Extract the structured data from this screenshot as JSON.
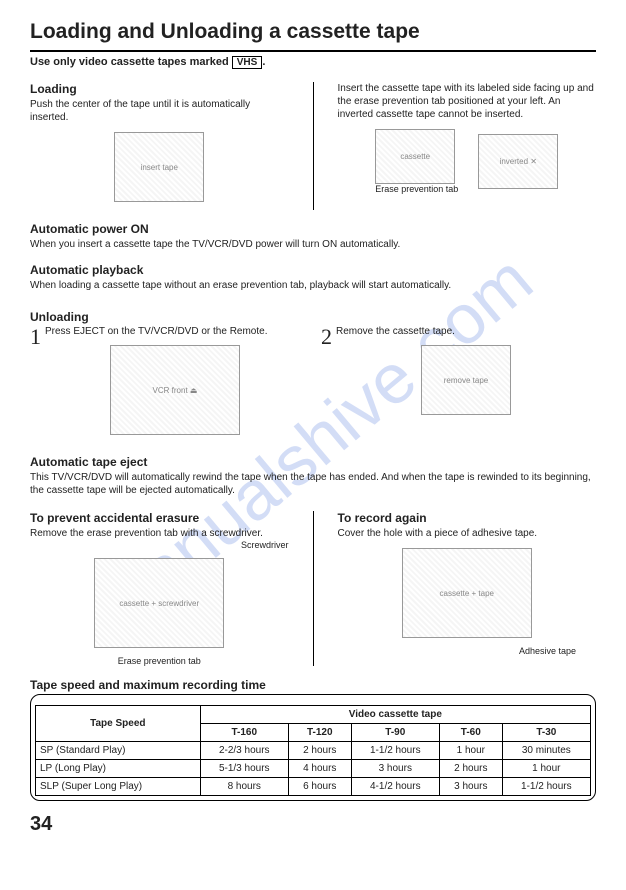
{
  "watermark": "manualshive.com",
  "title": "Loading and Unloading a cassette tape",
  "subtitle_pre": "Use only video cassette tapes marked ",
  "vhs": "VHS",
  "subtitle_post": ".",
  "loading": {
    "h": "Loading",
    "left": "Push the center of the tape until it is automatically inserted.",
    "right": "Insert the cassette tape with its labeled side facing up and the erase prevention tab positioned at your left. An inverted cassette tape cannot be inserted.",
    "fig1": "insert tape",
    "fig2": "cassette",
    "fig3": "inverted ✕",
    "cap": "Erase prevention tab"
  },
  "auto_on": {
    "h": "Automatic power ON",
    "t": "When you insert a cassette tape the TV/VCR/DVD power will turn ON automatically."
  },
  "auto_pb": {
    "h": "Automatic playback",
    "t": "When loading a cassette tape without an erase prevention tab, playback will start automatically."
  },
  "unloading": {
    "h": "Unloading",
    "s1n": "1",
    "s1": "Press EJECT on the TV/VCR/DVD or the Remote.",
    "s2n": "2",
    "s2": "Remove the cassette tape.",
    "fig1": "VCR front ⏏",
    "fig2": "remove tape"
  },
  "auto_ej": {
    "h": "Automatic tape eject",
    "t": "This TV/VCR/DVD will automatically rewind the tape when the tape has ended. And when the tape is rewinded to its beginning, the cassette tape will be ejected automatically."
  },
  "prevent": {
    "h": "To prevent accidental erasure",
    "t": "Remove the erase prevention tab with a screwdriver.",
    "cap1": "Screwdriver",
    "cap2": "Erase prevention tab",
    "fig": "cassette + screwdriver"
  },
  "record": {
    "h": "To record again",
    "t": "Cover the hole with a piece of adhesive tape.",
    "cap": "Adhesive tape",
    "fig": "cassette + tape"
  },
  "table": {
    "title": "Tape speed and maximum recording time",
    "h_speed": "Tape Speed",
    "h_cat": "Video cassette tape",
    "cols": [
      "T-160",
      "T-120",
      "T-90",
      "T-60",
      "T-30"
    ],
    "rows": [
      {
        "label": "SP (Standard Play)",
        "cells": [
          "2-2/3 hours",
          "2 hours",
          "1-1/2 hours",
          "1 hour",
          "30 minutes"
        ]
      },
      {
        "label": "LP (Long Play)",
        "cells": [
          "5-1/3 hours",
          "4 hours",
          "3 hours",
          "2 hours",
          "1 hour"
        ]
      },
      {
        "label": "SLP (Super Long Play)",
        "cells": [
          "8 hours",
          "6 hours",
          "4-1/2 hours",
          "3 hours",
          "1-1/2 hours"
        ]
      }
    ]
  },
  "page": "34"
}
